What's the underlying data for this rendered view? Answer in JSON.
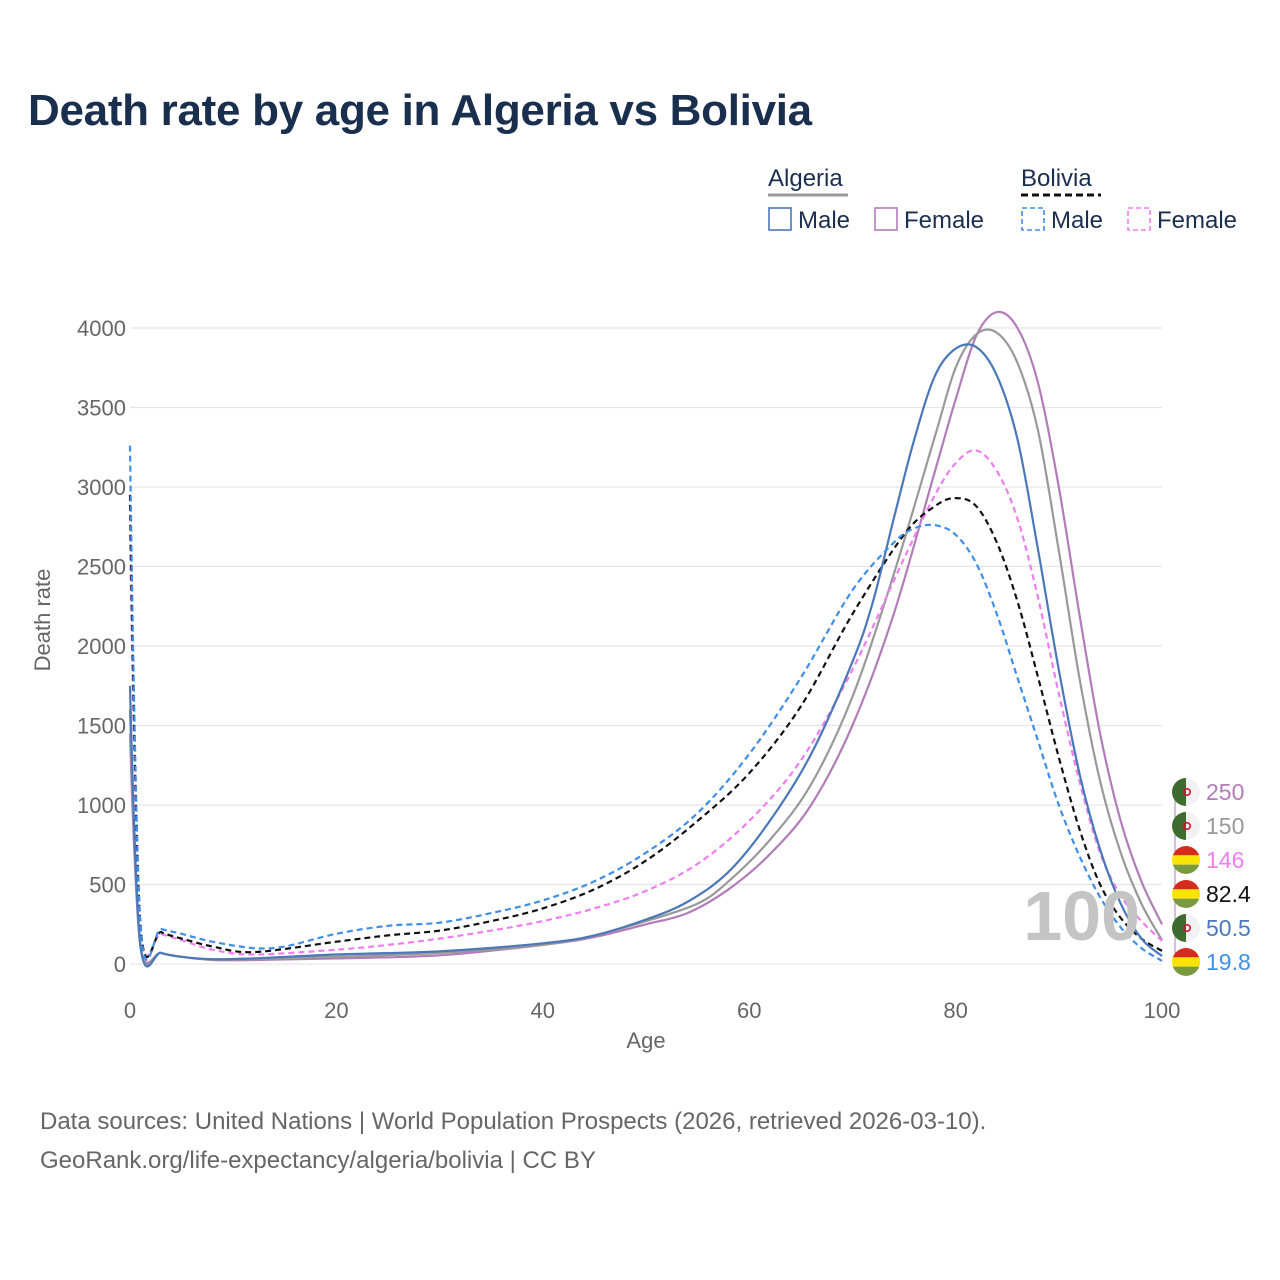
{
  "chart_data": {
    "type": "line",
    "title": "Death rate by age in Algeria vs Bolivia",
    "xlabel": "Age",
    "ylabel": "Death rate",
    "xlim": [
      0,
      100
    ],
    "ylim": [
      0,
      4000
    ],
    "xticks": [
      0,
      20,
      40,
      60,
      80,
      100
    ],
    "yticks": [
      0,
      500,
      1000,
      1500,
      2000,
      2500,
      3000,
      3500,
      4000
    ],
    "grid": true,
    "year_watermark": "100",
    "legend": {
      "placement": "top-right",
      "groups": [
        {
          "country": "Algeria",
          "line_color": "#999999",
          "line_style": "solid",
          "items": [
            {
              "label": "Male",
              "color": "#4a78b8"
            },
            {
              "label": "Female",
              "color": "#b27cb8"
            }
          ]
        },
        {
          "country": "Bolivia",
          "line_color": "#111111",
          "line_style": "dashed",
          "items": [
            {
              "label": "Male",
              "color": "#3f8ee8"
            },
            {
              "label": "Female",
              "color": "#f07ef0"
            }
          ]
        }
      ]
    },
    "series": [
      {
        "name": "Algeria Female",
        "color": "#b27cb8",
        "dash": false,
        "x": [
          0,
          1,
          3,
          5,
          8,
          12,
          20,
          30,
          40,
          45,
          50,
          54,
          58,
          62,
          66,
          70,
          74,
          78,
          80,
          82,
          84,
          86,
          88,
          90,
          92,
          94,
          96,
          98,
          100
        ],
        "y": [
          1450,
          120,
          70,
          45,
          25,
          25,
          35,
          55,
          120,
          170,
          250,
          320,
          470,
          690,
          1000,
          1500,
          2200,
          3100,
          3550,
          3950,
          4100,
          4000,
          3650,
          3000,
          2200,
          1450,
          900,
          520,
          250
        ],
        "end_label": "250",
        "flag": "algeria"
      },
      {
        "name": "Algeria Total",
        "color": "#999999",
        "dash": false,
        "x": [
          0,
          1,
          3,
          5,
          8,
          12,
          20,
          30,
          40,
          45,
          50,
          55,
          58,
          62,
          66,
          70,
          74,
          78,
          80,
          82,
          84,
          86,
          88,
          90,
          92,
          94,
          96,
          98,
          100
        ],
        "y": [
          1600,
          120,
          70,
          45,
          28,
          30,
          45,
          70,
          120,
          180,
          270,
          380,
          520,
          780,
          1130,
          1680,
          2450,
          3320,
          3750,
          3960,
          3970,
          3780,
          3350,
          2600,
          1800,
          1150,
          700,
          380,
          150
        ],
        "end_label": "150",
        "flag": "algeria"
      },
      {
        "name": "Bolivia Female",
        "color": "#f07ef0",
        "dash": true,
        "x": [
          0,
          1,
          3,
          5,
          8,
          12,
          20,
          25,
          30,
          35,
          40,
          45,
          50,
          55,
          60,
          65,
          70,
          75,
          78,
          80,
          82,
          84,
          86,
          88,
          90,
          92,
          94,
          96,
          98,
          100
        ],
        "y": [
          2700,
          250,
          190,
          150,
          90,
          60,
          90,
          120,
          160,
          210,
          270,
          350,
          460,
          630,
          900,
          1280,
          1850,
          2550,
          2950,
          3150,
          3230,
          3100,
          2800,
          2300,
          1700,
          1150,
          700,
          430,
          270,
          146
        ],
        "end_label": "146",
        "flag": "bolivia"
      },
      {
        "name": "Bolivia Total",
        "color": "#111111",
        "dash": true,
        "x": [
          0,
          1,
          3,
          5,
          8,
          12,
          20,
          25,
          30,
          35,
          40,
          45,
          50,
          55,
          60,
          65,
          70,
          75,
          78,
          80,
          82,
          84,
          86,
          88,
          90,
          92,
          94,
          96,
          98,
          100
        ],
        "y": [
          2950,
          260,
          200,
          160,
          110,
          75,
          140,
          180,
          210,
          270,
          350,
          470,
          650,
          900,
          1200,
          1620,
          2200,
          2700,
          2880,
          2930,
          2880,
          2650,
          2280,
          1800,
          1300,
          850,
          500,
          290,
          160,
          82.4
        ],
        "end_label": "82.4",
        "flag": "bolivia"
      },
      {
        "name": "Algeria Male",
        "color": "#4a78b8",
        "dash": false,
        "x": [
          0,
          1,
          3,
          5,
          8,
          12,
          20,
          30,
          40,
          45,
          50,
          54,
          58,
          62,
          66,
          70,
          72,
          74,
          76,
          78,
          80,
          82,
          84,
          86,
          88,
          90,
          92,
          94,
          96,
          98,
          100
        ],
        "y": [
          1750,
          120,
          70,
          45,
          30,
          35,
          60,
          80,
          130,
          180,
          280,
          390,
          580,
          900,
          1320,
          1900,
          2280,
          2800,
          3300,
          3700,
          3870,
          3880,
          3700,
          3300,
          2600,
          1850,
          1200,
          720,
          380,
          160,
          50.5
        ],
        "end_label": "50.5",
        "flag": "algeria"
      },
      {
        "name": "Bolivia Male",
        "color": "#3f8ee8",
        "dash": true,
        "x": [
          0,
          1,
          3,
          5,
          8,
          12,
          15,
          20,
          25,
          30,
          35,
          40,
          45,
          50,
          55,
          60,
          65,
          70,
          74,
          76,
          78,
          80,
          82,
          84,
          86,
          88,
          90,
          92,
          94,
          96,
          98,
          100
        ],
        "y": [
          3260,
          260,
          220,
          190,
          140,
          100,
          110,
          190,
          240,
          260,
          320,
          400,
          520,
          700,
          950,
          1320,
          1800,
          2350,
          2650,
          2740,
          2760,
          2700,
          2520,
          2200,
          1800,
          1400,
          1000,
          680,
          420,
          230,
          100,
          19.8
        ],
        "end_label": "19.8",
        "flag": "bolivia"
      }
    ]
  },
  "footer": {
    "source": "Data sources: United Nations | World Population Prospects (2026, retrieved 2026-03-10).",
    "credit": "GeoRank.org/life-expectancy/algeria/bolivia | CC BY"
  }
}
